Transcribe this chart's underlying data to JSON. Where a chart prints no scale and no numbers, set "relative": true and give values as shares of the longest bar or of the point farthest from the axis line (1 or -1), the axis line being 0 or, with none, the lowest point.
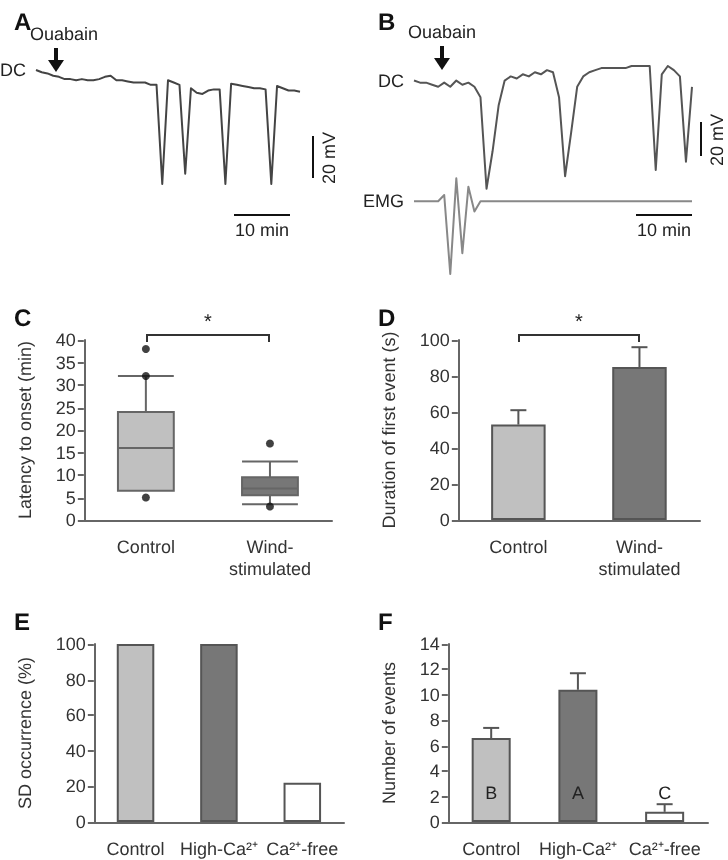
{
  "chart_data": [
    {
      "type": "line",
      "title": "A",
      "relative": true,
      "tick_labels": false,
      "categories": [
        null,
        null,
        null,
        null,
        null,
        null,
        null,
        null,
        null,
        null,
        null,
        null,
        null,
        null,
        null,
        null,
        null,
        null,
        null,
        null,
        null,
        null,
        null,
        null,
        null,
        null,
        null,
        null,
        null,
        null,
        null,
        null,
        null,
        null,
        null,
        null,
        null,
        null,
        null,
        null,
        null,
        null,
        null,
        null,
        null,
        null,
        null
      ],
      "series": [
        {
          "name": "DC",
          "color": "#444444",
          "values": [
            1.0,
            0.98,
            0.97,
            0.95,
            0.94,
            0.92,
            0.92,
            0.91,
            0.92,
            0.91,
            0.91,
            0.92,
            0.94,
            0.95,
            0.91,
            0.91,
            0.9,
            0.89,
            0.89,
            0.89,
            0.87,
            0.87,
            0,
            0.91,
            0.89,
            0.87,
            0.09,
            0.84,
            0.8,
            0.79,
            0.82,
            0.83,
            0.83,
            0,
            0.88,
            0.87,
            0.86,
            0.85,
            0.84,
            0.84,
            0.83,
            0,
            0.86,
            0.84,
            0.82,
            0.82,
            0.81
          ]
        }
      ],
      "annotations": [
        "Ouabain",
        "20 mV",
        "10 min"
      ]
    },
    {
      "type": "line",
      "title": "B",
      "relative": true,
      "tick_labels": false,
      "categories": [
        null,
        null,
        null,
        null,
        null,
        null,
        null,
        null,
        null,
        null,
        null,
        null,
        null,
        null,
        null,
        null,
        null,
        null,
        null,
        null,
        null,
        null,
        null,
        null,
        null,
        null,
        null,
        null,
        null,
        null,
        null,
        null,
        null,
        null,
        null,
        null,
        null,
        null,
        null,
        null,
        null,
        null,
        null,
        null,
        null,
        null,
        null
      ],
      "series": [
        {
          "name": "DC",
          "color": "#555555",
          "values": [
            0.93,
            0.92,
            0.92,
            0.91,
            0.9,
            0.92,
            0.9,
            0.93,
            0.91,
            0.92,
            0.9,
            0.85,
            0.41,
            0.59,
            0.81,
            0.93,
            0.95,
            0.94,
            0.96,
            0.95,
            0.97,
            0.96,
            0.98,
            0.97,
            0.85,
            0.47,
            0.68,
            0.9,
            0.95,
            0.97,
            0.98,
            0.99,
            0.99,
            0.99,
            0.99,
            0.99,
            1.0,
            1.0,
            1.0,
            1.0,
            0.5,
            0.96,
            1.0,
            0.98,
            0.95,
            0.54,
            0.9
          ]
        },
        {
          "name": "EMG",
          "color": "#888888",
          "values": [
            0.35,
            0.35,
            0.35,
            0.35,
            0.35,
            0.38,
            0,
            0.46,
            0.1,
            0.42,
            0.3,
            0.35,
            0.35,
            0.35,
            0.35,
            0.35,
            0.35,
            0.35,
            0.35,
            0.35,
            0.35,
            0.35,
            0.35,
            0.35,
            0.35,
            0.35,
            0.35,
            0.35,
            0.35,
            0.35,
            0.35,
            0.35,
            0.35,
            0.35,
            0.35,
            0.35,
            0.35,
            0.35,
            0.35,
            0.35,
            0.35,
            0.35,
            0.35,
            0.35,
            0.35,
            0.35,
            0.35
          ]
        }
      ],
      "annotations": [
        "Ouabain",
        "20 mV",
        "10 min"
      ]
    },
    {
      "type": "box",
      "title": "C",
      "ylabel": "Latency to onset (min)",
      "categories": [
        "Control",
        "Wind-\nstimulated"
      ],
      "colors": [
        "#c0c0c0",
        "#777777"
      ],
      "boxes": [
        {
          "low": 6.5,
          "q1": 6.5,
          "median": 16,
          "q3": 24,
          "high": 32,
          "outliers": [
            38,
            32,
            5
          ]
        },
        {
          "low": 3.5,
          "q1": 5.5,
          "median": 7,
          "q3": 9.5,
          "high": 13,
          "outliers": [
            17,
            3
          ]
        }
      ],
      "ylim": [
        0,
        40
      ],
      "yticks": [
        0,
        5,
        10,
        15,
        20,
        25,
        30,
        35,
        40
      ],
      "annotations": [
        "*"
      ]
    },
    {
      "type": "bar",
      "title": "D",
      "ylabel": "Duration of first event (s)",
      "categories": [
        "Control",
        "Wind-\nstimulated"
      ],
      "values": [
        53,
        85
      ],
      "errors": [
        [
          53,
          61
        ],
        [
          85,
          96
        ]
      ],
      "colors": [
        "#c0c0c0",
        "#777777"
      ],
      "ylim": [
        0,
        100
      ],
      "yticks": [
        0,
        20,
        40,
        60,
        80,
        100
      ],
      "annotations": [
        "*"
      ]
    },
    {
      "type": "bar",
      "title": "E",
      "ylabel": "SD occurrence (%)",
      "categories": [
        "Control",
        "High-Ca²⁺",
        "Ca²⁺-free"
      ],
      "values": [
        100,
        100,
        22
      ],
      "colors": [
        "#c0c0c0",
        "#777777",
        "#ffffff"
      ],
      "ylim": [
        0,
        100
      ],
      "yticks": [
        0,
        20,
        40,
        60,
        80,
        100
      ]
    },
    {
      "type": "bar",
      "title": "F",
      "ylabel": "Number of events",
      "categories": [
        "Control",
        "High-Ca²⁺",
        "Ca²⁺-free"
      ],
      "values": [
        6.6,
        10.4,
        0.8
      ],
      "errors": [
        [
          6.6,
          7.4
        ],
        [
          10.4,
          11.7
        ],
        [
          0.8,
          1.4
        ]
      ],
      "colors": [
        "#c0c0c0",
        "#777777",
        "#ffffff"
      ],
      "ylim": [
        0,
        14
      ],
      "yticks": [
        0,
        2,
        4,
        6,
        8,
        10,
        12,
        14
      ],
      "annotations": [
        "B",
        "A",
        "C"
      ]
    }
  ]
}
